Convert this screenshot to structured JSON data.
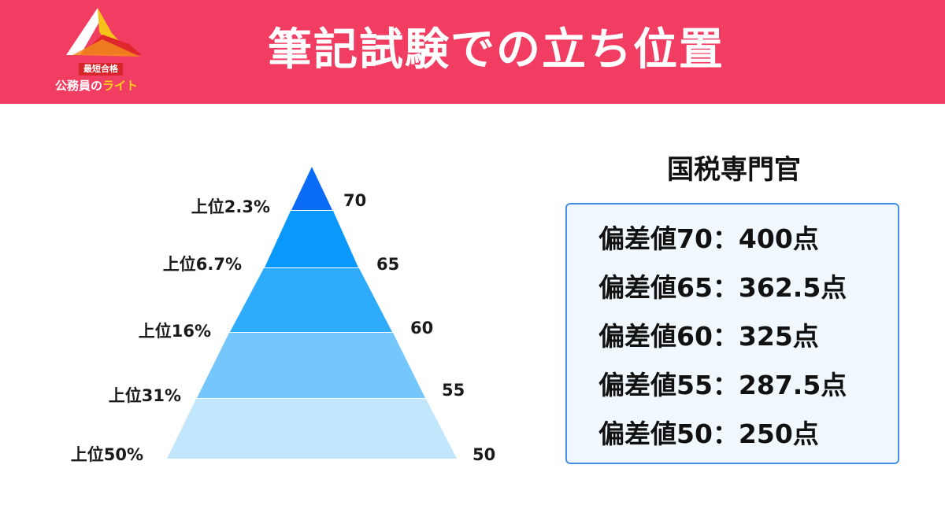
{
  "header": {
    "title": "筆記試験での立ち位置",
    "logo": {
      "tag": "最短合格",
      "name_main": "公務員の",
      "name_accent": "ライト"
    }
  },
  "pyramid": {
    "tiers": [
      {
        "label": "上位2.3%",
        "score": "70",
        "color": "#0a6bf5"
      },
      {
        "label": "上位6.7%",
        "score": "65",
        "color": "#0a98fa"
      },
      {
        "label": "上位16%",
        "score": "60",
        "color": "#2eacfb"
      },
      {
        "label": "上位31%",
        "score": "55",
        "color": "#74c6fb"
      },
      {
        "label": "上位50%",
        "score": "50",
        "color": "#c2e6fb"
      }
    ]
  },
  "panel": {
    "title": "国税専門官",
    "rows": [
      "偏差値70：400点",
      "偏差値65：362.5点",
      "偏差値60：325点",
      "偏差値55：287.5点",
      "偏差値50：250点"
    ],
    "border_color": "#4a90e2",
    "background_color": "#f1f8fd"
  },
  "colors": {
    "header_bg": "#f23d62"
  }
}
